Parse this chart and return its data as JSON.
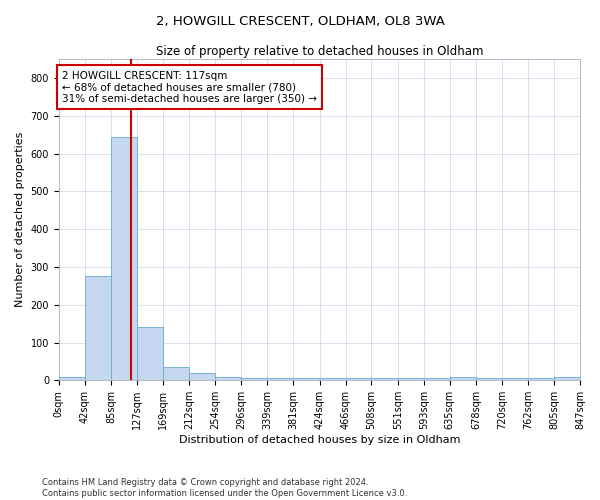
{
  "title1": "2, HOWGILL CRESCENT, OLDHAM, OL8 3WA",
  "title2": "Size of property relative to detached houses in Oldham",
  "xlabel": "Distribution of detached houses by size in Oldham",
  "ylabel": "Number of detached properties",
  "footer1": "Contains HM Land Registry data © Crown copyright and database right 2024.",
  "footer2": "Contains public sector information licensed under the Open Government Licence v3.0.",
  "bin_edges": [
    0,
    42,
    85,
    127,
    169,
    212,
    254,
    296,
    339,
    381,
    424,
    466,
    508,
    551,
    593,
    635,
    678,
    720,
    762,
    805,
    847
  ],
  "bar_heights": [
    10,
    275,
    645,
    140,
    35,
    20,
    10,
    5,
    5,
    5,
    5,
    5,
    5,
    5,
    5,
    8,
    5,
    5,
    5,
    8
  ],
  "bar_color": "#c5d8ef",
  "bar_edgecolor": "#6aaad4",
  "property_size": 117,
  "vline_color": "#cc0000",
  "annotation_text": "2 HOWGILL CRESCENT: 117sqm\n← 68% of detached houses are smaller (780)\n31% of semi-detached houses are larger (350) →",
  "annotation_box_color": "#cc0000",
  "ylim": [
    0,
    850
  ],
  "yticks": [
    0,
    100,
    200,
    300,
    400,
    500,
    600,
    700,
    800
  ],
  "background_color": "#ffffff",
  "grid_color": "#c8d4e8",
  "title_fontsize": 9.5,
  "subtitle_fontsize": 8.5,
  "ylabel_fontsize": 8,
  "xlabel_fontsize": 8,
  "tick_fontsize": 7,
  "footer_fontsize": 6
}
